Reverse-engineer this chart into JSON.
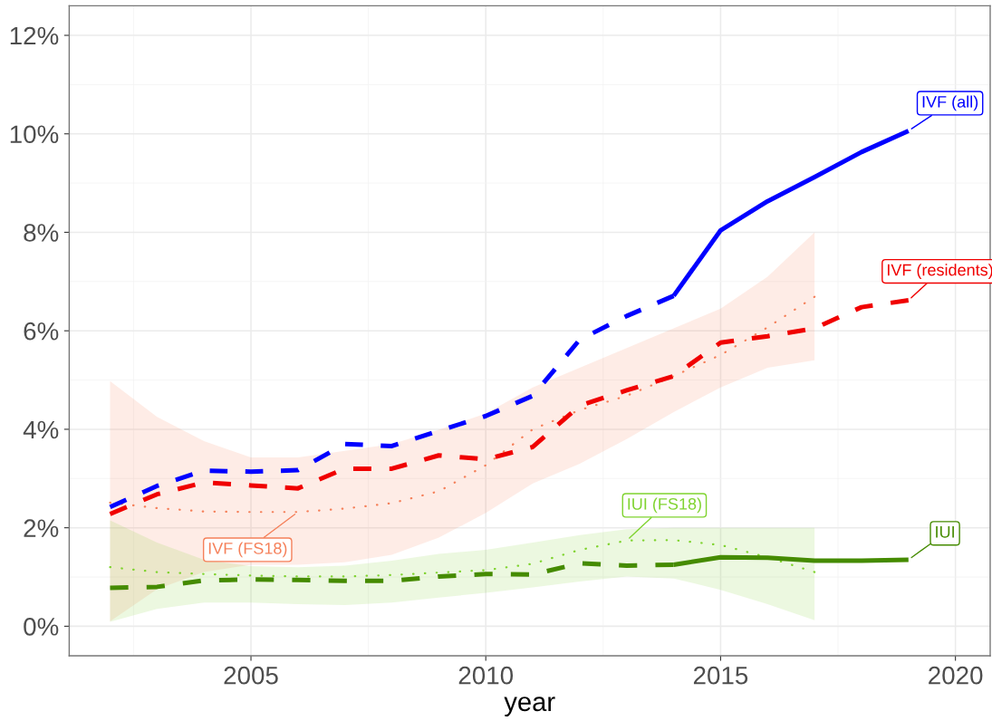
{
  "chart_data": {
    "type": "line",
    "xlabel": "year",
    "xlim": [
      2001.13,
      2020.74
    ],
    "xticks": [
      2005,
      2010,
      2015,
      2020
    ],
    "ylim": [
      -0.6,
      12.6
    ],
    "yticks": [
      {
        "value": 0,
        "label": "0%"
      },
      {
        "value": 2,
        "label": "2%"
      },
      {
        "value": 4,
        "label": "4%"
      },
      {
        "value": 6,
        "label": "6%"
      },
      {
        "value": 8,
        "label": "8%"
      },
      {
        "value": 10,
        "label": "10%"
      },
      {
        "value": 12,
        "label": "12%"
      }
    ],
    "grid": true,
    "series": [
      {
        "name": "IVF (FS18)",
        "color": "#f5805a",
        "line_style": "dotted",
        "x": [
          2002,
          2003,
          2004,
          2005,
          2006,
          2007,
          2008,
          2009,
          2010,
          2011,
          2012,
          2013,
          2014,
          2015,
          2016,
          2017
        ],
        "values": [
          2.51,
          2.4,
          2.33,
          2.32,
          2.32,
          2.39,
          2.5,
          2.74,
          3.27,
          4.0,
          4.39,
          4.68,
          5.08,
          5.51,
          6.07,
          6.69
        ],
        "lower": [
          0.1,
          0.75,
          1.1,
          1.25,
          1.25,
          1.3,
          1.45,
          1.8,
          2.3,
          2.9,
          3.3,
          3.8,
          4.35,
          4.85,
          5.25,
          5.4
        ],
        "upper": [
          4.98,
          4.25,
          3.76,
          3.43,
          3.43,
          3.56,
          3.7,
          3.99,
          4.32,
          4.85,
          5.25,
          5.65,
          6.05,
          6.45,
          7.1,
          8.0
        ]
      },
      {
        "name": "IUI (FS18)",
        "color": "#7fd32f",
        "line_style": "dotted",
        "x": [
          2002,
          2003,
          2004,
          2005,
          2006,
          2007,
          2008,
          2009,
          2010,
          2011,
          2012,
          2013,
          2014,
          2015,
          2016,
          2017
        ],
        "values": [
          1.2,
          1.1,
          1.06,
          1.03,
          1.01,
          1.01,
          1.04,
          1.09,
          1.14,
          1.27,
          1.55,
          1.74,
          1.75,
          1.65,
          1.4,
          1.1
        ],
        "lower": [
          0.09,
          0.35,
          0.48,
          0.48,
          0.45,
          0.43,
          0.48,
          0.58,
          0.68,
          0.79,
          0.91,
          1.01,
          0.97,
          0.74,
          0.45,
          0.12
        ],
        "upper": [
          2.15,
          1.7,
          1.35,
          1.22,
          1.2,
          1.23,
          1.33,
          1.47,
          1.55,
          1.7,
          1.85,
          1.97,
          2.0,
          2.0,
          2.0,
          2.0
        ]
      },
      {
        "color": "#0000ff",
        "line_style": "dashed",
        "x": [
          2002,
          2003,
          2004,
          2005,
          2006,
          2007,
          2008,
          2009,
          2010,
          2011,
          2012,
          2013,
          2014
        ],
        "values": [
          2.42,
          2.85,
          3.16,
          3.14,
          3.17,
          3.7,
          3.66,
          3.97,
          4.27,
          4.68,
          5.82,
          6.3,
          6.71
        ]
      },
      {
        "name": "IVF (all)",
        "color": "#0000ff",
        "line_style": "solid",
        "x": [
          2014,
          2015,
          2016,
          2017,
          2018,
          2019
        ],
        "values": [
          6.71,
          8.04,
          8.63,
          9.12,
          9.63,
          10.06
        ]
      },
      {
        "name": "IVF (residents)",
        "color": "#f00000",
        "line_style": "dashed",
        "x": [
          2002,
          2003,
          2004,
          2005,
          2006,
          2007,
          2008,
          2009,
          2010,
          2011,
          2012,
          2013,
          2014,
          2015,
          2016,
          2017,
          2018,
          2019
        ],
        "values": [
          2.28,
          2.68,
          2.92,
          2.86,
          2.8,
          3.2,
          3.2,
          3.47,
          3.39,
          3.64,
          4.48,
          4.79,
          5.08,
          5.76,
          5.89,
          6.05,
          6.48,
          6.62
        ]
      },
      {
        "color": "#458b00",
        "line_style": "dashed",
        "x": [
          2002,
          2003,
          2004,
          2005,
          2006,
          2007,
          2008,
          2009,
          2010,
          2011,
          2012,
          2013,
          2014
        ],
        "values": [
          0.78,
          0.8,
          0.93,
          0.95,
          0.94,
          0.92,
          0.92,
          1.01,
          1.06,
          1.05,
          1.28,
          1.23,
          1.25
        ]
      },
      {
        "name": "IUI",
        "color": "#458b00",
        "line_style": "solid",
        "x": [
          2014,
          2015,
          2016,
          2017,
          2018,
          2019
        ],
        "values": [
          1.25,
          1.4,
          1.39,
          1.33,
          1.33,
          1.35
        ]
      }
    ]
  }
}
